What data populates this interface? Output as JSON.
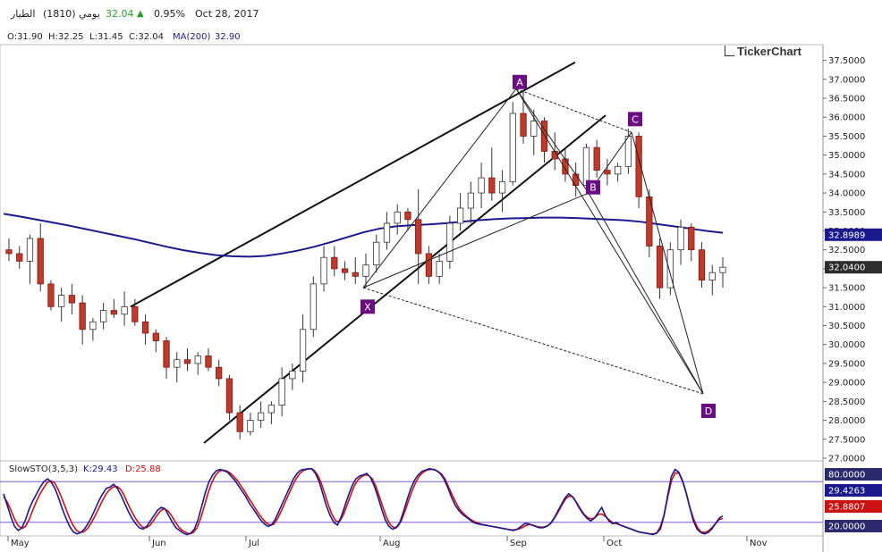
{
  "header": {
    "name": "الطيار",
    "code": "(1810)",
    "period": "يومي",
    "last": "32.04",
    "change_pct": "0.95%",
    "date": "Oct 28, 2017",
    "up_color": "#2a9d2a"
  },
  "ohlc": {
    "o": "O:31.90",
    "h": "H:32.25",
    "l": "L:31.45",
    "c": "C:32.04",
    "ma_label": "MA(200)",
    "ma_value": "32.90"
  },
  "logo": "TickerChart",
  "stochastic": {
    "name": "SlowSTO(3,5,3)",
    "k_label": "K:29.43",
    "d_label": "D:25.88",
    "k_color": "#1a1a8c",
    "d_color": "#cc1111",
    "ylim": [
      0,
      100
    ],
    "levels": [
      20,
      80
    ],
    "axis_labels": [
      "80.0000",
      "29.4263",
      "25.8807",
      "20.0000"
    ],
    "k": [
      62,
      45,
      28,
      14,
      8,
      12,
      24,
      40,
      52,
      62,
      72,
      80,
      84,
      79,
      70,
      56,
      40,
      26,
      14,
      6,
      3,
      5,
      10,
      18,
      28,
      40,
      52,
      62,
      70,
      72,
      76,
      70,
      60,
      48,
      36,
      26,
      18,
      12,
      10,
      14,
      22,
      30,
      38,
      42,
      40,
      30,
      20,
      12,
      8,
      4,
      2,
      4,
      10,
      24,
      44,
      64,
      80,
      90,
      96,
      98,
      96,
      94,
      88,
      82,
      74,
      66,
      58,
      48,
      40,
      32,
      24,
      18,
      14,
      16,
      24,
      36,
      48,
      60,
      72,
      84,
      92,
      97,
      98,
      99,
      99,
      92,
      80,
      62,
      44,
      30,
      20,
      16,
      28,
      44,
      60,
      74,
      84,
      88,
      90,
      92,
      86,
      74,
      58,
      40,
      24,
      14,
      10,
      12,
      20,
      36,
      54,
      70,
      82,
      90,
      95,
      97,
      99,
      98,
      96,
      92,
      84,
      72,
      58,
      46,
      38,
      32,
      28,
      24,
      20,
      18,
      17,
      16,
      15,
      14,
      13,
      12,
      11,
      10,
      9,
      8,
      10,
      14,
      18,
      18,
      16,
      14,
      12,
      12,
      14,
      18,
      26,
      36,
      46,
      56,
      62,
      58,
      50,
      40,
      32,
      26,
      22,
      26,
      34,
      42,
      30,
      22,
      18,
      20,
      16,
      14,
      12,
      10,
      8,
      6,
      5,
      4,
      3,
      2,
      4,
      10,
      30,
      60,
      88,
      98,
      94,
      82,
      64,
      42,
      22,
      10,
      5,
      3,
      5,
      10,
      18,
      26,
      29.43
    ],
    "d": [
      58,
      50,
      38,
      25,
      15,
      11,
      14,
      24,
      38,
      51,
      62,
      71,
      79,
      81,
      78,
      68,
      55,
      41,
      27,
      16,
      8,
      5,
      6,
      11,
      19,
      29,
      40,
      51,
      61,
      68,
      72,
      73,
      69,
      60,
      48,
      37,
      27,
      19,
      13,
      12,
      15,
      22,
      30,
      37,
      40,
      37,
      30,
      21,
      13,
      8,
      5,
      3,
      5,
      12,
      26,
      44,
      63,
      78,
      89,
      95,
      97,
      96,
      93,
      88,
      82,
      74,
      66,
      57,
      49,
      40,
      32,
      25,
      19,
      16,
      17,
      25,
      36,
      48,
      60,
      72,
      83,
      91,
      96,
      98,
      99,
      97,
      90,
      78,
      62,
      45,
      31,
      22,
      21,
      30,
      44,
      59,
      73,
      82,
      87,
      90,
      89,
      84,
      73,
      57,
      41,
      26,
      16,
      12,
      14,
      23,
      37,
      53,
      68,
      80,
      89,
      94,
      97,
      98,
      98,
      95,
      91,
      83,
      71,
      59,
      48,
      39,
      33,
      28,
      24,
      21,
      19,
      17,
      16,
      15,
      14,
      13,
      12,
      11,
      10,
      9,
      9,
      10,
      12,
      15,
      17,
      16,
      14,
      13,
      13,
      15,
      19,
      27,
      36,
      46,
      55,
      59,
      57,
      49,
      40,
      32,
      27,
      25,
      27,
      32,
      32,
      28,
      23,
      19,
      18,
      16,
      14,
      12,
      10,
      8,
      6,
      5,
      4,
      3,
      3,
      5,
      15,
      33,
      59,
      82,
      93,
      92,
      80,
      63,
      42,
      25,
      13,
      6,
      5,
      7,
      12,
      18,
      24,
      25.88
    ]
  },
  "chart_data": {
    "type": "candlestick",
    "title": "",
    "ylim": [
      27.0,
      37.75
    ],
    "yticks": [
      "37.5000",
      "37.0000",
      "36.5000",
      "36.0000",
      "35.5000",
      "35.0000",
      "34.5000",
      "34.0000",
      "33.5000",
      "33.0000",
      "32.5000",
      "32.0000",
      "31.5000",
      "31.0000",
      "30.5000",
      "30.0000",
      "29.5000",
      "29.0000",
      "28.5000",
      "28.0000",
      "27.5000",
      "27.0000"
    ],
    "price_tags": [
      {
        "label": "32.8989",
        "value": 32.8989,
        "color": "#1a1a8c"
      },
      {
        "label": "32.0400",
        "value": 32.04,
        "color": "#2d2d2d"
      }
    ],
    "months": [
      "May",
      "Jun",
      "Jul",
      "Aug",
      "Sep",
      "Oct",
      "Nov"
    ],
    "up_color": "#ffffff",
    "down_color": "#c0392b",
    "ma_color": "#1a1a8c",
    "ma200": [
      33.45,
      33.38,
      33.3,
      33.22,
      33.14,
      33.05,
      32.96,
      32.87,
      32.78,
      32.68,
      32.58,
      32.49,
      32.42,
      32.36,
      32.33,
      32.32,
      32.34,
      32.4,
      32.48,
      32.58,
      32.7,
      32.83,
      32.96,
      33.06,
      33.12,
      33.15,
      33.17,
      33.2,
      33.24,
      33.28,
      33.31,
      33.33,
      33.34,
      33.35,
      33.35,
      33.34,
      33.32,
      33.3,
      33.28,
      33.24,
      33.18,
      33.12,
      33.06,
      33.0,
      32.95
    ],
    "candles": [
      [
        32.5,
        32.8,
        32.2,
        32.4
      ],
      [
        32.4,
        32.6,
        32.0,
        32.2
      ],
      [
        32.2,
        32.9,
        31.6,
        32.8
      ],
      [
        32.8,
        33.2,
        31.4,
        31.6
      ],
      [
        31.6,
        31.7,
        30.9,
        31.0
      ],
      [
        31.0,
        31.5,
        30.6,
        31.3
      ],
      [
        31.3,
        31.6,
        30.8,
        31.1
      ],
      [
        31.1,
        31.3,
        30.0,
        30.4
      ],
      [
        30.4,
        30.7,
        30.1,
        30.6
      ],
      [
        30.6,
        31.1,
        30.4,
        30.9
      ],
      [
        30.9,
        31.2,
        30.7,
        30.8
      ],
      [
        30.8,
        31.4,
        30.5,
        31.0
      ],
      [
        31.0,
        31.2,
        30.5,
        30.6
      ],
      [
        30.6,
        30.8,
        30.0,
        30.3
      ],
      [
        30.3,
        30.4,
        29.8,
        30.1
      ],
      [
        30.1,
        30.2,
        29.1,
        29.4
      ],
      [
        29.4,
        29.8,
        29.0,
        29.6
      ],
      [
        29.6,
        29.9,
        29.3,
        29.5
      ],
      [
        29.5,
        29.8,
        29.2,
        29.7
      ],
      [
        29.7,
        29.9,
        29.3,
        29.4
      ],
      [
        29.4,
        29.6,
        28.9,
        29.1
      ],
      [
        29.1,
        29.2,
        28.0,
        28.2
      ],
      [
        28.2,
        28.4,
        27.5,
        27.7
      ],
      [
        27.7,
        28.2,
        27.6,
        28.0
      ],
      [
        28.0,
        28.5,
        27.8,
        28.2
      ],
      [
        28.2,
        28.5,
        27.9,
        28.4
      ],
      [
        28.4,
        29.4,
        28.1,
        29.1
      ],
      [
        29.1,
        29.5,
        28.8,
        29.3
      ],
      [
        29.3,
        30.8,
        29.0,
        30.4
      ],
      [
        30.4,
        31.8,
        30.2,
        31.6
      ],
      [
        31.6,
        32.6,
        31.4,
        32.3
      ],
      [
        32.3,
        32.6,
        31.8,
        32.0
      ],
      [
        32.0,
        32.2,
        31.7,
        31.9
      ],
      [
        31.9,
        32.3,
        31.6,
        31.8
      ],
      [
        31.8,
        32.4,
        31.5,
        32.1
      ],
      [
        32.1,
        32.9,
        31.9,
        32.7
      ],
      [
        32.7,
        33.5,
        32.5,
        33.2
      ],
      [
        33.2,
        33.7,
        32.9,
        33.5
      ],
      [
        33.5,
        33.6,
        33.0,
        33.3
      ],
      [
        33.3,
        34.1,
        31.6,
        32.4
      ],
      [
        32.4,
        32.6,
        31.6,
        31.8
      ],
      [
        31.8,
        32.4,
        31.6,
        32.2
      ],
      [
        32.2,
        33.4,
        32.0,
        33.2
      ],
      [
        33.2,
        34.0,
        33.0,
        33.6
      ],
      [
        33.6,
        34.3,
        33.2,
        34.0
      ],
      [
        34.0,
        34.8,
        33.6,
        34.4
      ],
      [
        34.4,
        35.2,
        33.8,
        34.0
      ],
      [
        34.0,
        34.6,
        33.5,
        34.3
      ],
      [
        34.3,
        36.4,
        34.2,
        36.1
      ],
      [
        36.1,
        36.7,
        35.3,
        35.5
      ],
      [
        35.5,
        36.2,
        35.0,
        35.9
      ],
      [
        35.9,
        36.0,
        34.8,
        35.1
      ],
      [
        35.1,
        35.6,
        34.6,
        34.9
      ],
      [
        34.9,
        35.2,
        34.3,
        34.5
      ],
      [
        34.5,
        34.8,
        33.9,
        34.2
      ],
      [
        34.2,
        35.3,
        34.0,
        35.2
      ],
      [
        35.2,
        35.4,
        34.4,
        34.6
      ],
      [
        34.6,
        34.9,
        34.2,
        34.5
      ],
      [
        34.5,
        34.8,
        34.3,
        34.7
      ],
      [
        34.7,
        35.7,
        34.5,
        35.5
      ],
      [
        35.5,
        35.6,
        33.6,
        33.9
      ],
      [
        33.9,
        34.1,
        32.3,
        32.6
      ],
      [
        32.6,
        32.8,
        31.2,
        31.5
      ],
      [
        31.5,
        32.7,
        31.3,
        32.5
      ],
      [
        32.5,
        33.3,
        32.1,
        33.1
      ],
      [
        33.1,
        33.2,
        32.2,
        32.5
      ],
      [
        32.5,
        32.7,
        31.5,
        31.7
      ],
      [
        31.7,
        32.1,
        31.3,
        31.9
      ],
      [
        31.9,
        32.3,
        31.5,
        32.04
      ]
    ]
  },
  "harmonic": {
    "labels": [
      "X",
      "A",
      "B",
      "C",
      "D"
    ],
    "color": "#6a0d83"
  }
}
